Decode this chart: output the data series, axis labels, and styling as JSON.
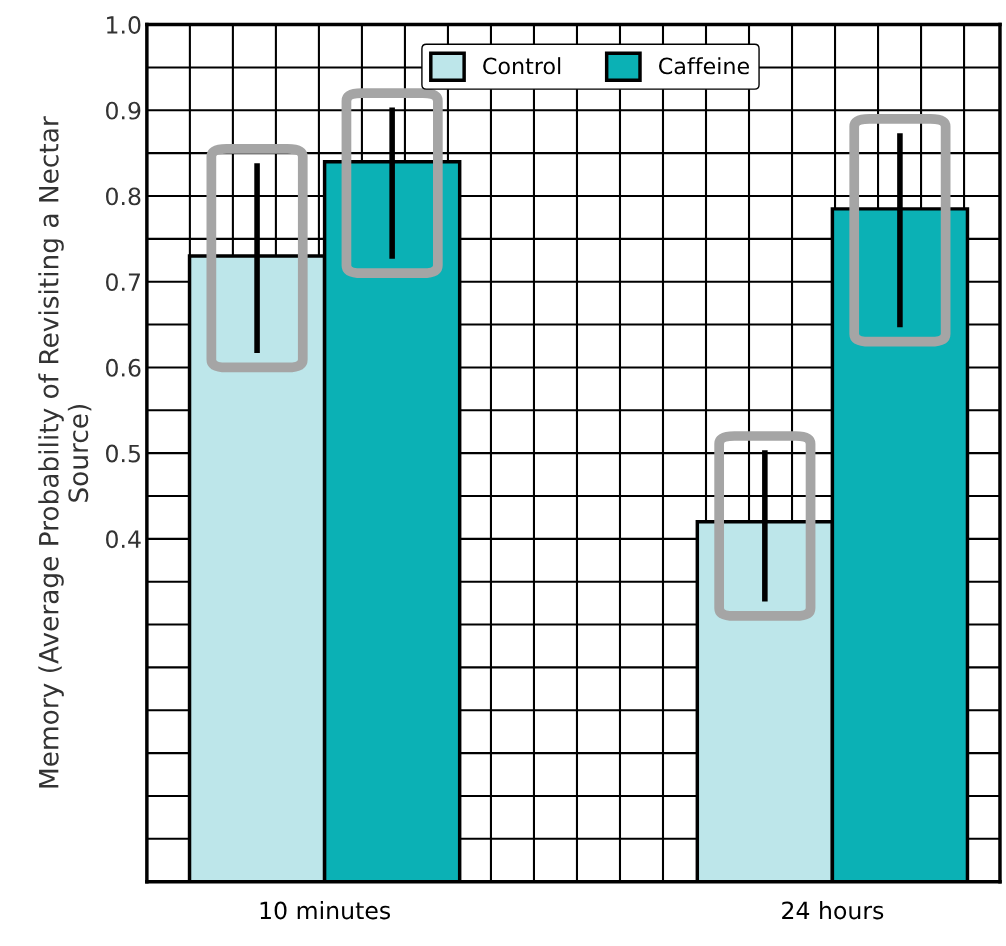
{
  "chart_data": {
    "type": "bar",
    "ylabel": "Memory (Average Probability of Revisiting a Nectar\nSource)",
    "categories": [
      "10 minutes",
      "24 hours"
    ],
    "series": [
      {
        "name": "Control",
        "color": "#bde6ea",
        "values": [
          0.73,
          0.42
        ],
        "errors": [
          [
            0.62,
            0.835
          ],
          [
            0.33,
            0.5
          ]
        ]
      },
      {
        "name": "Caffeine",
        "color": "#0bb1b5",
        "values": [
          0.84,
          0.785
        ],
        "errors": [
          [
            0.73,
            0.9
          ],
          [
            0.65,
            0.87
          ]
        ]
      }
    ],
    "ylim": [
      0,
      1.0
    ],
    "yticks": [
      {
        "value": 0,
        "label": null
      },
      {
        "value": 0.05,
        "label": null
      },
      {
        "value": 0.1,
        "label": null
      },
      {
        "value": 0.15,
        "label": null
      },
      {
        "value": 0.2,
        "label": null
      },
      {
        "value": 0.25,
        "label": null
      },
      {
        "value": 0.3,
        "label": null
      },
      {
        "value": 0.35,
        "label": null
      },
      0.4,
      {
        "value": 0.45,
        "label": null
      },
      0.5,
      {
        "value": 0.55,
        "label": null
      },
      0.6,
      {
        "value": 0.65,
        "label": null
      },
      0.7,
      {
        "value": 0.75,
        "label": null
      },
      0.8,
      {
        "value": 0.85,
        "label": null
      },
      0.9,
      {
        "value": 0.95,
        "label": null
      },
      {
        "value": 1,
        "label": "1.0"
      }
    ],
    "grid": true,
    "legend": "top center"
  }
}
